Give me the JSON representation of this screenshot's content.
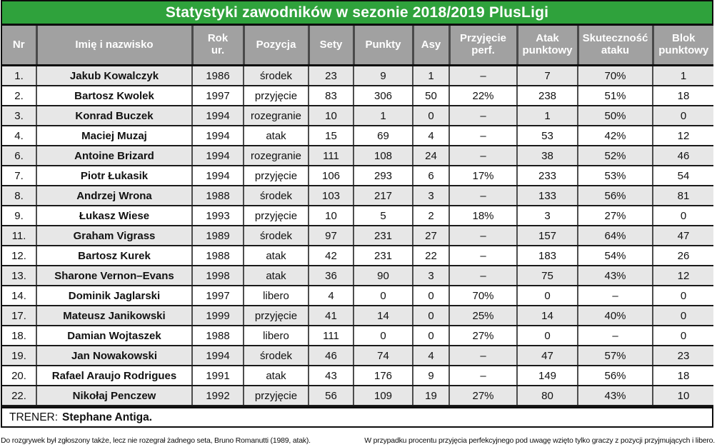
{
  "colors": {
    "title_green": "#2fa23c",
    "header_gray": "#a1a1a1",
    "row_stripe": "#e7e7e7",
    "header_text": "#ffffff"
  },
  "chart_data": {
    "type": "table",
    "title": "Statystyki zawodników w sezonie 2018/2019 PlusLigi",
    "columns": [
      {
        "key": "nr",
        "label": "Nr"
      },
      {
        "key": "name",
        "label": "Imię i nazwisko"
      },
      {
        "key": "birth-year",
        "label": "Rok\nur."
      },
      {
        "key": "position",
        "label": "Pozycja"
      },
      {
        "key": "sets",
        "label": "Sety"
      },
      {
        "key": "points",
        "label": "Punkty"
      },
      {
        "key": "aces",
        "label": "Asy"
      },
      {
        "key": "reception-perf",
        "label": "Przyjęcie\nperf."
      },
      {
        "key": "attack-points",
        "label": "Atak\npunktowy"
      },
      {
        "key": "attack-efficiency",
        "label": "Skuteczność\nataku"
      },
      {
        "key": "block-points",
        "label": "Blok\npunktowy"
      }
    ],
    "rows": [
      [
        "1.",
        "Jakub Kowalczyk",
        "1986",
        "środek",
        "23",
        "9",
        "1",
        "–",
        "7",
        "70%",
        "1"
      ],
      [
        "2.",
        "Bartosz Kwolek",
        "1997",
        "przyjęcie",
        "83",
        "306",
        "50",
        "22%",
        "238",
        "51%",
        "18"
      ],
      [
        "3.",
        "Konrad Buczek",
        "1994",
        "rozegranie",
        "10",
        "1",
        "0",
        "–",
        "1",
        "50%",
        "0"
      ],
      [
        "4.",
        "Maciej Muzaj",
        "1994",
        "atak",
        "15",
        "69",
        "4",
        "–",
        "53",
        "42%",
        "12"
      ],
      [
        "6.",
        "Antoine Brizard",
        "1994",
        "rozegranie",
        "111",
        "108",
        "24",
        "–",
        "38",
        "52%",
        "46"
      ],
      [
        "7.",
        "Piotr Łukasik",
        "1994",
        "przyjęcie",
        "106",
        "293",
        "6",
        "17%",
        "233",
        "53%",
        "54"
      ],
      [
        "8.",
        "Andrzej Wrona",
        "1988",
        "środek",
        "103",
        "217",
        "3",
        "–",
        "133",
        "56%",
        "81"
      ],
      [
        "9.",
        "Łukasz Wiese",
        "1993",
        "przyjęcie",
        "10",
        "5",
        "2",
        "18%",
        "3",
        "27%",
        "0"
      ],
      [
        "11.",
        "Graham Vigrass",
        "1989",
        "środek",
        "97",
        "231",
        "27",
        "–",
        "157",
        "64%",
        "47"
      ],
      [
        "12.",
        "Bartosz Kurek",
        "1988",
        "atak",
        "42",
        "231",
        "22",
        "–",
        "183",
        "54%",
        "26"
      ],
      [
        "13.",
        "Sharone Vernon–Evans",
        "1998",
        "atak",
        "36",
        "90",
        "3",
        "–",
        "75",
        "43%",
        "12"
      ],
      [
        "14.",
        "Dominik Jaglarski",
        "1997",
        "libero",
        "4",
        "0",
        "0",
        "70%",
        "0",
        "–",
        "0"
      ],
      [
        "17.",
        "Mateusz Janikowski",
        "1999",
        "przyjęcie",
        "41",
        "14",
        "0",
        "25%",
        "14",
        "40%",
        "0"
      ],
      [
        "18.",
        "Damian Wojtaszek",
        "1988",
        "libero",
        "111",
        "0",
        "0",
        "27%",
        "0",
        "–",
        "0"
      ],
      [
        "19.",
        "Jan Nowakowski",
        "1994",
        "środek",
        "46",
        "74",
        "4",
        "–",
        "47",
        "57%",
        "23"
      ],
      [
        "20.",
        "Rafael Araujo Rodrigues",
        "1991",
        "atak",
        "43",
        "176",
        "9",
        "–",
        "149",
        "56%",
        "18"
      ],
      [
        "22.",
        "Nikołaj Penczew",
        "1992",
        "przyjęcie",
        "56",
        "109",
        "19",
        "27%",
        "80",
        "43%",
        "10"
      ]
    ]
  },
  "footer": {
    "trener_label": "TRENER:",
    "trener_name": "Stephane Antiga."
  },
  "footnotes": {
    "left": "Do rozgrywek był zgłoszony także, lecz nie rozegrał żadnego seta, Bruno Romanutti (1989, atak).",
    "right": "W przypadku procentu przyjęcia perfekcyjnego pod uwagę wzięto tylko graczy z pozycji przyjmujących i libero."
  }
}
